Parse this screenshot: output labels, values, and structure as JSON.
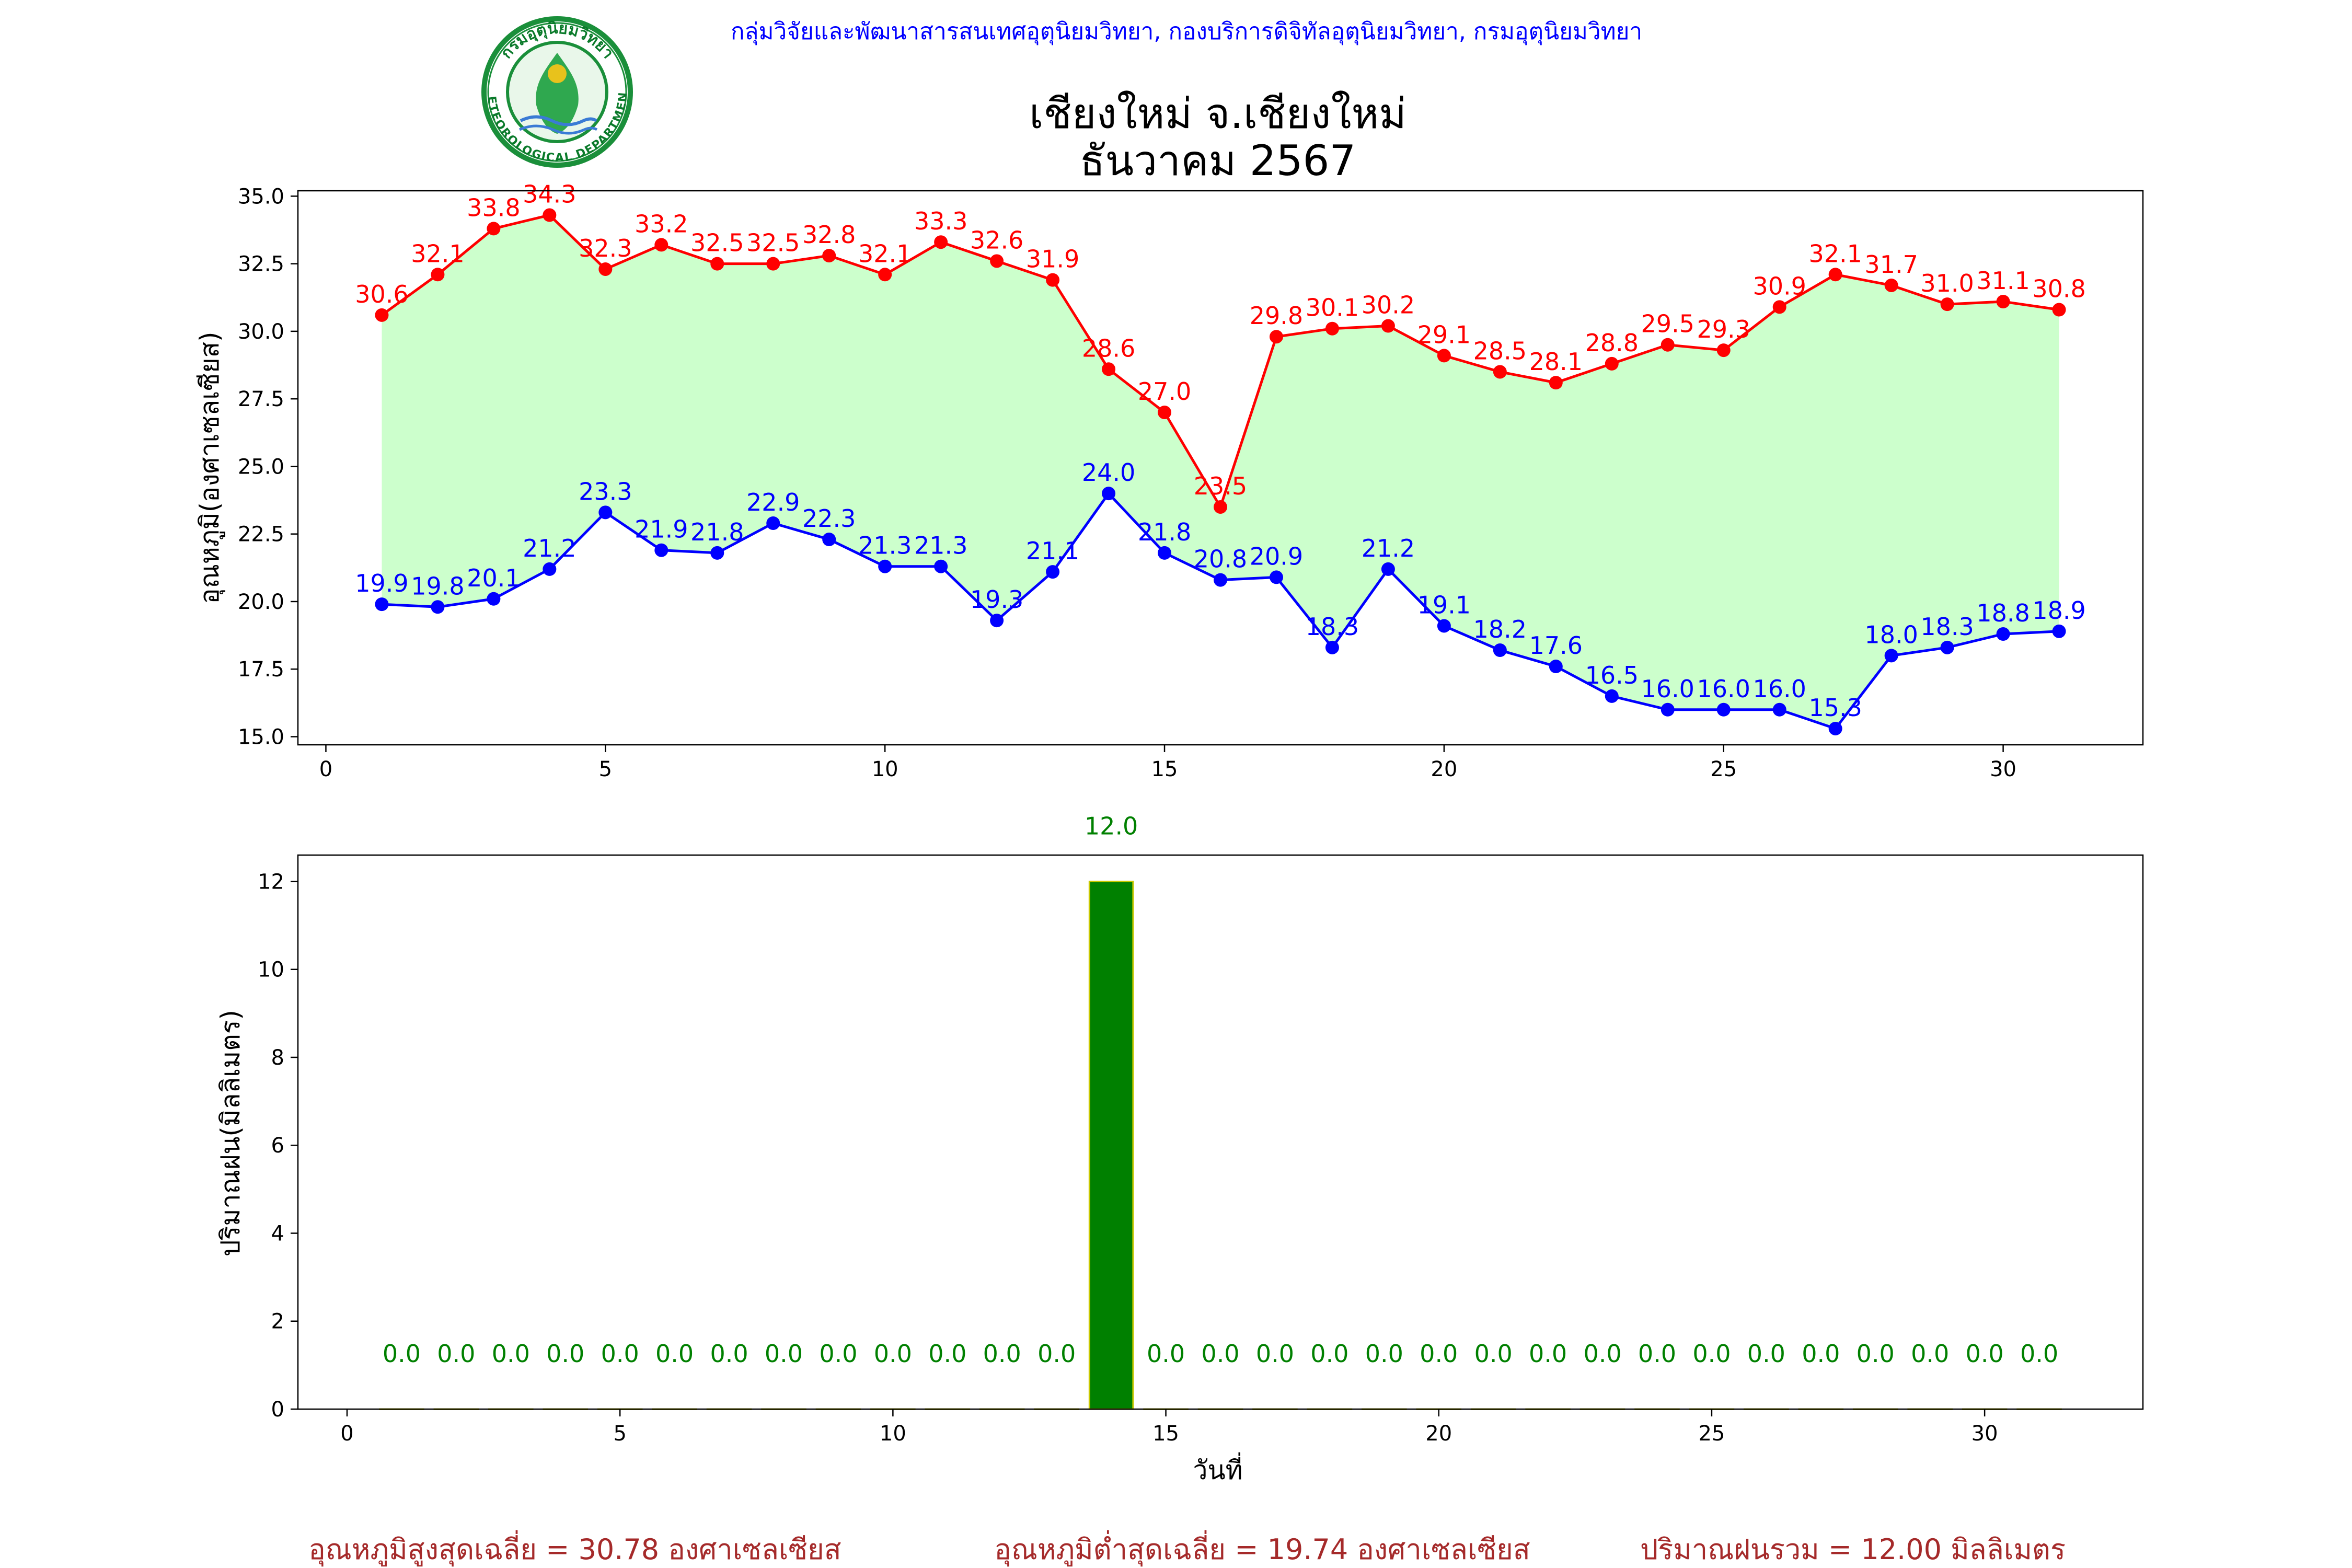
{
  "header": {
    "organization": "กลุ่มวิจัยและพัฒนาสารสนเทศอุตุนิยมวิทยา, กองบริการดิจิทัลอุตุนิยมวิทยา, กรมอุตุนิยมวิทยา",
    "title_line1": "เชียงใหม่ จ.เชียงใหม่",
    "title_line2": "ธันวาคม 2567"
  },
  "logo": {
    "seal_text_top": "กรมอุตุนิยมวิทยา",
    "seal_text_bottom": "METEOROLOGICAL DEPARTMENT",
    "colors": {
      "ring": "#1a8f3a",
      "inner": "#e9f7ea",
      "figure": "#2fa84f",
      "accent": "#e8c21c"
    }
  },
  "footer": {
    "avg_max": "อุณหภูมิสูงสุดเฉลี่ย = 30.78 องศาเซลเซียส",
    "avg_min": "อุณหภูมิต่ำสุดเฉลี่ย = 19.74 องศาเซลเซียส",
    "total_rain": "ปริมาณฝนรวม = 12.00 มิลลิเมตร"
  },
  "chart_data": [
    {
      "type": "line",
      "ylabel": "อุณหภูมิ(องศาเซลเซียส)",
      "xlabel": "",
      "x": [
        1,
        2,
        3,
        4,
        5,
        6,
        7,
        8,
        9,
        10,
        11,
        12,
        13,
        14,
        15,
        16,
        17,
        18,
        19,
        20,
        21,
        22,
        23,
        24,
        25,
        26,
        27,
        28,
        29,
        30,
        31
      ],
      "xlim": [
        -0.5,
        32.5
      ],
      "ylim": [
        14.7,
        35.2
      ],
      "xticks": [
        0,
        5,
        10,
        15,
        20,
        25,
        30
      ],
      "yticks": [
        15.0,
        17.5,
        20.0,
        22.5,
        25.0,
        27.5,
        30.0,
        32.5,
        35.0
      ],
      "fill_between": {
        "color": "#ccffcc"
      },
      "series": [
        {
          "color": "#ff0000",
          "values": [
            30.6,
            32.1,
            33.8,
            34.3,
            32.3,
            33.2,
            32.5,
            32.5,
            32.8,
            32.1,
            33.3,
            32.6,
            31.9,
            28.6,
            27.0,
            23.5,
            29.8,
            30.1,
            30.2,
            29.1,
            28.5,
            28.1,
            28.8,
            29.5,
            29.3,
            30.9,
            32.1,
            31.7,
            31.0,
            31.1,
            30.8
          ]
        },
        {
          "color": "#0000ff",
          "values": [
            19.9,
            19.8,
            20.1,
            21.2,
            23.3,
            21.9,
            21.8,
            22.9,
            22.3,
            21.3,
            21.3,
            19.3,
            21.1,
            24.0,
            21.8,
            20.8,
            20.9,
            18.3,
            21.2,
            19.1,
            18.2,
            17.6,
            16.5,
            16.0,
            16.0,
            16.0,
            15.3,
            18.0,
            18.3,
            18.8,
            18.9
          ]
        }
      ]
    },
    {
      "type": "bar",
      "ylabel": "ปริมาณฝน(มิลลิเมตร)",
      "xlabel": "วันที่",
      "x": [
        1,
        2,
        3,
        4,
        5,
        6,
        7,
        8,
        9,
        10,
        11,
        12,
        13,
        14,
        15,
        16,
        17,
        18,
        19,
        20,
        21,
        22,
        23,
        24,
        25,
        26,
        27,
        28,
        29,
        30,
        31
      ],
      "values": [
        0.0,
        0.0,
        0.0,
        0.0,
        0.0,
        0.0,
        0.0,
        0.0,
        0.0,
        0.0,
        0.0,
        0.0,
        0.0,
        12.0,
        0.0,
        0.0,
        0.0,
        0.0,
        0.0,
        0.0,
        0.0,
        0.0,
        0.0,
        0.0,
        0.0,
        0.0,
        0.0,
        0.0,
        0.0,
        0.0,
        0.0
      ],
      "xlim": [
        -0.9,
        32.9
      ],
      "ylim": [
        0,
        12.6
      ],
      "xticks": [
        0,
        5,
        10,
        15,
        20,
        25,
        30
      ],
      "yticks": [
        0,
        2,
        4,
        6,
        8,
        10,
        12
      ],
      "bar_color": "#008000",
      "bar_edge_color": "#c8c800",
      "label_color": "#008000"
    }
  ]
}
